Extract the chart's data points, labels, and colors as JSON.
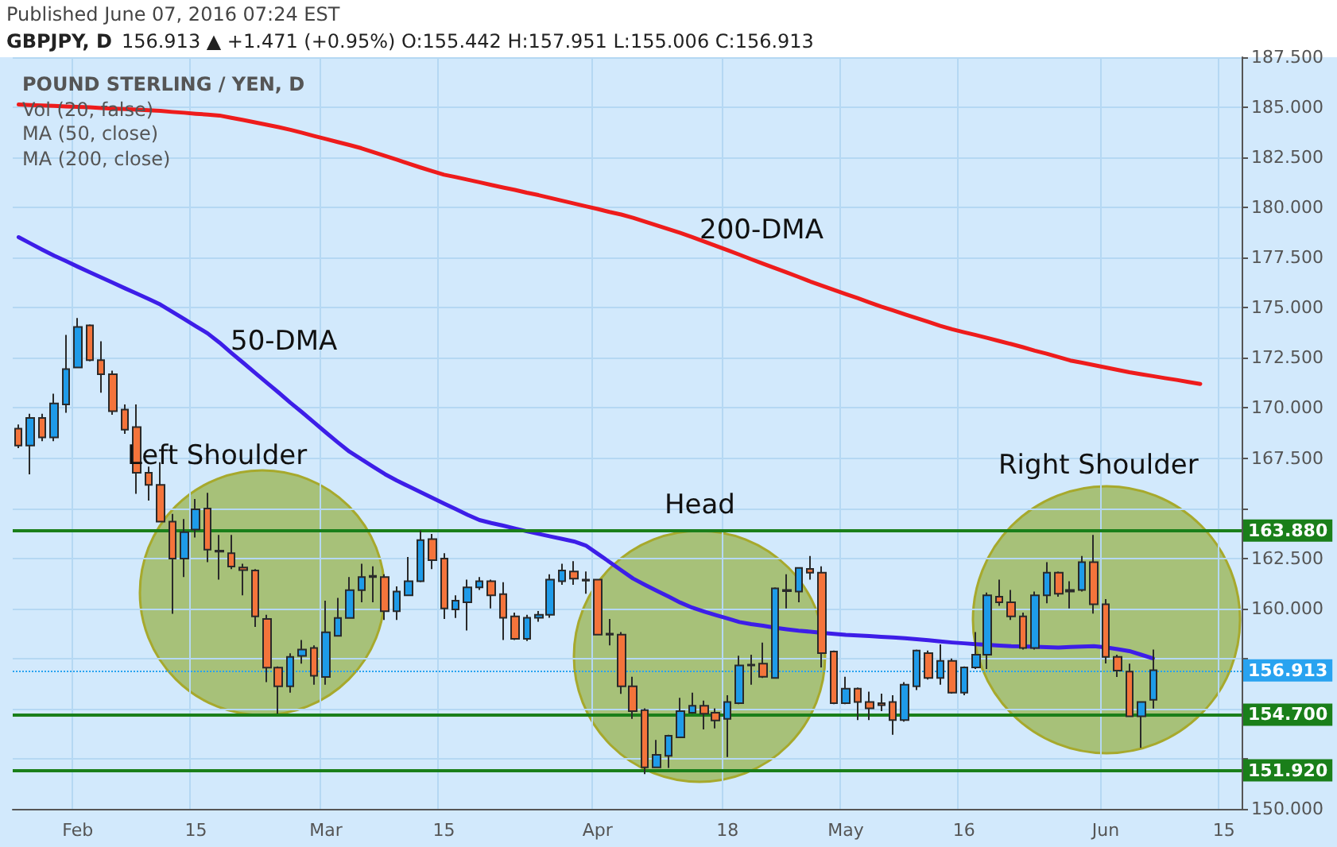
{
  "chart_data": {
    "type": "candlestick",
    "title": "GBPJPY, D",
    "subtitle": "156.913 ▲ +1.471 (+0.95%) O:155.442 H:157.951 L:155.006 C:156.913",
    "annotations": [
      "Published June 07, 2016 07:24 EST",
      "POUND STERLING / YEN, D",
      "Vol (20, false)",
      "MA (50, close)",
      "MA (200, close)",
      "50-DMA",
      "200-DMA",
      "Left Shoulder",
      "Head",
      "Right Shoulder"
    ],
    "categories": [
      null,
      null,
      null,
      null,
      null,
      "Feb",
      null,
      null,
      null,
      null,
      null,
      null,
      null,
      null,
      null,
      "15",
      null,
      null,
      null,
      null,
      null,
      null,
      null,
      null,
      null,
      null,
      "Mar",
      null,
      null,
      null,
      null,
      null,
      null,
      null,
      null,
      null,
      "15",
      null,
      null,
      null,
      null,
      null,
      null,
      null,
      null,
      null,
      null,
      null,
      null,
      "Apr",
      null,
      null,
      null,
      null,
      null,
      null,
      null,
      null,
      null,
      null,
      "18",
      null,
      null,
      null,
      null,
      null,
      null,
      null,
      null,
      null,
      "May",
      null,
      null,
      null,
      null,
      null,
      null,
      null,
      null,
      null,
      "16",
      null,
      null,
      null,
      null,
      null,
      null,
      null,
      null,
      null,
      null,
      null,
      "Jun",
      null,
      null,
      null,
      null,
      null,
      null,
      null,
      null,
      null,
      "15",
      null
    ],
    "ohlc": [
      [
        168.97,
        169.18,
        168.0,
        168.13
      ],
      [
        168.13,
        169.71,
        166.69,
        169.5
      ],
      [
        169.5,
        169.71,
        168.34,
        168.53
      ],
      [
        168.53,
        170.71,
        168.34,
        170.23
      ],
      [
        170.18,
        173.65,
        169.76,
        171.94
      ],
      [
        172.02,
        174.49,
        172.02,
        174.04
      ],
      [
        174.12,
        174.17,
        172.33,
        172.39
      ],
      [
        172.39,
        173.33,
        170.76,
        171.68
      ],
      [
        171.68,
        171.86,
        169.66,
        169.84
      ],
      [
        169.92,
        170.18,
        168.71,
        168.92
      ],
      [
        169.05,
        170.18,
        165.72,
        166.77
      ],
      [
        166.77,
        167.08,
        165.38,
        166.16
      ],
      [
        166.16,
        167.29,
        164.33,
        164.33
      ],
      [
        164.33,
        164.72,
        159.73,
        162.49
      ],
      [
        162.49,
        164.46,
        161.57,
        163.8
      ],
      [
        163.93,
        165.46,
        163.54,
        164.94
      ],
      [
        164.98,
        165.77,
        162.31,
        162.93
      ],
      [
        162.88,
        163.67,
        161.44,
        162.83
      ],
      [
        162.75,
        163.67,
        161.96,
        162.09
      ],
      [
        162.04,
        162.23,
        160.65,
        161.91
      ],
      [
        161.89,
        161.96,
        159.08,
        159.6
      ],
      [
        159.47,
        159.68,
        156.32,
        157.05
      ],
      [
        157.05,
        157.11,
        154.75,
        156.11
      ],
      [
        156.11,
        157.76,
        155.8,
        157.58
      ],
      [
        157.63,
        158.42,
        157.24,
        157.95
      ],
      [
        158.03,
        158.16,
        156.19,
        156.64
      ],
      [
        156.58,
        160.39,
        156.19,
        158.81
      ],
      [
        158.63,
        160.52,
        158.63,
        159.52
      ],
      [
        159.52,
        161.57,
        159.52,
        160.91
      ],
      [
        160.91,
        162.23,
        160.31,
        161.57
      ],
      [
        161.62,
        162.1,
        160.31,
        161.57
      ],
      [
        161.57,
        161.7,
        159.42,
        159.86
      ],
      [
        159.86,
        161.1,
        159.42,
        160.84
      ],
      [
        160.65,
        162.57,
        160.65,
        161.36
      ],
      [
        161.36,
        163.88,
        161.31,
        163.41
      ],
      [
        163.46,
        163.72,
        161.96,
        162.41
      ],
      [
        162.49,
        162.75,
        159.47,
        160.0
      ],
      [
        159.95,
        160.65,
        159.52,
        160.39
      ],
      [
        160.31,
        161.44,
        158.9,
        161.05
      ],
      [
        161.05,
        161.57,
        160.92,
        161.36
      ],
      [
        161.36,
        161.44,
        160.0,
        160.65
      ],
      [
        160.71,
        161.31,
        158.42,
        159.53
      ],
      [
        159.6,
        159.79,
        158.42,
        158.48
      ],
      [
        158.48,
        159.68,
        158.37,
        159.53
      ],
      [
        159.53,
        159.87,
        159.34,
        159.68
      ],
      [
        159.68,
        161.7,
        159.53,
        161.44
      ],
      [
        161.36,
        162.23,
        161.18,
        161.89
      ],
      [
        161.84,
        162.36,
        161.18,
        161.49
      ],
      [
        161.44,
        161.84,
        160.73,
        161.39
      ],
      [
        161.44,
        161.44,
        158.69,
        158.69
      ],
      [
        158.74,
        159.47,
        158.16,
        158.69
      ],
      [
        158.69,
        158.82,
        155.74,
        156.11
      ],
      [
        156.11,
        156.59,
        154.49,
        154.88
      ],
      [
        154.93,
        155.01,
        151.73,
        152.07
      ],
      [
        152.07,
        153.44,
        152.04,
        152.7
      ],
      [
        152.65,
        153.7,
        152.04,
        153.65
      ],
      [
        153.57,
        155.54,
        153.57,
        154.88
      ],
      [
        154.8,
        155.8,
        154.75,
        155.14
      ],
      [
        155.14,
        155.4,
        153.96,
        154.75
      ],
      [
        154.8,
        155.01,
        154.01,
        154.41
      ],
      [
        154.49,
        155.67,
        152.59,
        155.33
      ],
      [
        155.27,
        157.64,
        155.22,
        157.16
      ],
      [
        157.16,
        157.69,
        156.19,
        157.19
      ],
      [
        157.24,
        158.29,
        156.53,
        156.59
      ],
      [
        156.53,
        161.05,
        156.53,
        161.0
      ],
      [
        160.86,
        161.7,
        160.0,
        160.92
      ],
      [
        160.84,
        162.02,
        160.31,
        162.02
      ],
      [
        161.97,
        162.62,
        161.44,
        161.78
      ],
      [
        161.78,
        162.1,
        157.06,
        157.77
      ],
      [
        157.85,
        157.9,
        155.22,
        155.27
      ],
      [
        155.27,
        156.59,
        155.22,
        156.0
      ],
      [
        156.0,
        156.06,
        154.43,
        155.33
      ],
      [
        155.33,
        155.85,
        154.43,
        155.01
      ],
      [
        155.27,
        155.75,
        154.88,
        155.17
      ],
      [
        155.33,
        155.67,
        153.7,
        154.43
      ],
      [
        154.43,
        156.32,
        154.35,
        156.19
      ],
      [
        156.11,
        157.95,
        155.93,
        157.9
      ],
      [
        157.77,
        157.9,
        156.45,
        156.53
      ],
      [
        156.53,
        158.21,
        156.19,
        157.38
      ],
      [
        157.38,
        157.5,
        155.75,
        155.8
      ],
      [
        155.8,
        157.11,
        155.67,
        157.06
      ],
      [
        157.06,
        158.82,
        156.98,
        157.69
      ],
      [
        157.69,
        160.79,
        156.98,
        160.65
      ],
      [
        160.58,
        161.44,
        160.13,
        160.31
      ],
      [
        160.31,
        160.92,
        159.42,
        159.6
      ],
      [
        159.6,
        159.79,
        157.95,
        158.03
      ],
      [
        158.03,
        160.84,
        157.95,
        160.65
      ],
      [
        160.65,
        162.31,
        160.26,
        161.78
      ],
      [
        161.78,
        161.84,
        160.58,
        160.73
      ],
      [
        160.92,
        161.36,
        160.0,
        160.84
      ],
      [
        160.92,
        162.62,
        160.84,
        162.31
      ],
      [
        162.31,
        163.67,
        159.74,
        160.21
      ],
      [
        160.21,
        160.47,
        157.25,
        157.58
      ],
      [
        157.58,
        157.69,
        156.58,
        156.9
      ],
      [
        156.85,
        157.24,
        154.62,
        154.62
      ],
      [
        154.62,
        155.33,
        153.04,
        155.33
      ],
      [
        155.442,
        157.951,
        155.006,
        156.913
      ],
      null,
      null,
      null,
      null,
      null,
      null,
      null
    ],
    "colors": [
      "#f4743b",
      "#1e9be9",
      "#f4743b",
      "#1e9be9",
      "#1e9be9",
      "#1e9be9",
      "#f4743b",
      "#f4743b",
      "#f4743b",
      "#f4743b",
      "#f4743b",
      "#f4743b",
      "#f4743b",
      "#f4743b",
      "#1e9be9",
      "#1e9be9",
      "#f4743b",
      "#f4743b",
      "#f4743b",
      "#f4743b",
      "#f4743b",
      "#f4743b",
      "#f4743b",
      "#1e9be9",
      "#1e9be9",
      "#f4743b",
      "#1e9be9",
      "#1e9be9",
      "#1e9be9",
      "#1e9be9",
      "#f4743b",
      "#f4743b",
      "#1e9be9",
      "#1e9be9",
      "#1e9be9",
      "#f4743b",
      "#f4743b",
      "#1e9be9",
      "#1e9be9",
      "#1e9be9",
      "#f4743b",
      "#f4743b",
      "#f4743b",
      "#1e9be9",
      "#1e9be9",
      "#1e9be9",
      "#1e9be9",
      "#f4743b",
      "#f4743b",
      "#f4743b",
      "#222222",
      "#f4743b",
      "#f4743b",
      "#f4743b",
      "#1e9be9",
      "#1e9be9",
      "#1e9be9",
      "#1e9be9",
      "#f4743b",
      "#f4743b",
      "#1e9be9",
      "#1e9be9",
      "#1e9be9",
      "#f4743b",
      "#1e9be9",
      "#1e9be9",
      "#1e9be9",
      "#f4743b",
      "#f4743b",
      "#f4743b",
      "#1e9be9",
      "#f4743b",
      "#f4743b",
      "#f4743b",
      "#f4743b",
      "#1e9be9",
      "#1e9be9",
      "#f4743b",
      "#1e9be9",
      "#f4743b",
      "#1e9be9",
      "#1e9be9",
      "#1e9be9",
      "#f4743b",
      "#f4743b",
      "#f4743b",
      "#1e9be9",
      "#1e9be9",
      "#f4743b",
      "#222222",
      "#1e9be9",
      "#f4743b",
      "#f4743b",
      "#f4743b",
      "#f4743b",
      "#1e9be9",
      "#1e9be9",
      null,
      null,
      null,
      null,
      null,
      null,
      null
    ],
    "series": [
      {
        "type": "line",
        "color": "#3d1ee8",
        "values": [
          178.52,
          178.21,
          177.9,
          177.6,
          177.33,
          177.05,
          176.78,
          176.51,
          176.24,
          175.97,
          175.71,
          175.44,
          175.16,
          174.8,
          174.44,
          174.08,
          173.72,
          173.26,
          172.75,
          172.26,
          171.76,
          171.26,
          170.77,
          170.26,
          169.78,
          169.28,
          168.78,
          168.29,
          167.82,
          167.45,
          167.07,
          166.7,
          166.38,
          166.09,
          165.81,
          165.52,
          165.23,
          164.95,
          164.67,
          164.41,
          164.26,
          164.13,
          163.99,
          163.85,
          163.72,
          163.59,
          163.47,
          163.34,
          163.14,
          162.73,
          162.32,
          161.9,
          161.49,
          161.18,
          160.88,
          160.59,
          160.29,
          160.04,
          159.85,
          159.67,
          159.5,
          159.32,
          159.22,
          159.14,
          159.04,
          158.96,
          158.89,
          158.84,
          158.78,
          158.73,
          158.68,
          158.65,
          158.62,
          158.58,
          158.55,
          158.51,
          158.46,
          158.41,
          158.35,
          158.3,
          158.26,
          158.22,
          158.19,
          158.15,
          158.12,
          158.11,
          158.09,
          158.07,
          158.05,
          158.08,
          158.1,
          158.12,
          158.06,
          157.97,
          157.87,
          157.69,
          157.51,
          null,
          null,
          null,
          null,
          null,
          null,
          null
        ]
      },
      {
        "type": "line",
        "color": "#ee1c1c",
        "values": [
          185.14,
          185.11,
          185.09,
          185.07,
          185.04,
          185.02,
          185.0,
          184.96,
          184.93,
          184.91,
          184.88,
          184.85,
          184.82,
          184.77,
          184.73,
          184.68,
          184.64,
          184.59,
          184.48,
          184.37,
          184.25,
          184.13,
          184.01,
          183.88,
          183.73,
          183.57,
          183.42,
          183.27,
          183.12,
          182.96,
          182.77,
          182.58,
          182.39,
          182.19,
          182.0,
          181.82,
          181.64,
          181.52,
          181.39,
          181.26,
          181.13,
          181.0,
          180.88,
          180.74,
          180.62,
          180.48,
          180.34,
          180.2,
          180.06,
          179.93,
          179.78,
          179.65,
          179.49,
          179.3,
          179.11,
          178.92,
          178.73,
          178.53,
          178.31,
          178.09,
          177.87,
          177.65,
          177.42,
          177.2,
          176.98,
          176.76,
          176.54,
          176.31,
          176.1,
          175.89,
          175.68,
          175.48,
          175.27,
          175.06,
          174.87,
          174.67,
          174.48,
          174.29,
          174.1,
          173.93,
          173.78,
          173.64,
          173.49,
          173.34,
          173.19,
          173.03,
          172.86,
          172.71,
          172.54,
          172.37,
          172.26,
          172.14,
          172.02,
          171.9,
          171.78,
          171.68,
          171.59,
          171.49,
          171.4,
          171.3,
          171.2,
          null,
          null,
          null
        ]
      }
    ],
    "ylim": [
      150,
      187.5
    ],
    "yticks": [
      {
        "value": 150,
        "label": "150.000"
      },
      {
        "value": 152.5,
        "label": null
      },
      {
        "value": 155,
        "label": null
      },
      {
        "value": 157.5,
        "label": null
      },
      {
        "value": 160,
        "label": "160.000"
      },
      {
        "value": 162.5,
        "label": "162.500"
      },
      {
        "value": 165,
        "label": null
      },
      {
        "value": 167.5,
        "label": "167.500"
      },
      {
        "value": 170,
        "label": "170.000"
      },
      {
        "value": 172.5,
        "label": "172.500"
      },
      {
        "value": 175,
        "label": "175.000"
      },
      {
        "value": 177.5,
        "label": "177.500"
      },
      {
        "value": 180,
        "label": "180.000"
      },
      {
        "value": 182.5,
        "label": "182.500"
      },
      {
        "value": 185,
        "label": "185.000"
      },
      {
        "value": 187.5,
        "label": "187.500"
      }
    ],
    "ref_lines": [
      {
        "axis": "y",
        "value": 163.88,
        "label": "163.880",
        "color": "#1a7f1a",
        "line_style": "solid"
      },
      {
        "axis": "y",
        "value": 154.7,
        "label": "154.700",
        "color": "#1a7f1a",
        "line_style": "solid"
      },
      {
        "axis": "y",
        "value": 151.92,
        "label": "151.920",
        "color": "#1a7f1a",
        "line_style": "solid"
      },
      {
        "axis": "y",
        "value": 156.913,
        "label": "156.913",
        "color": "#29a3f0",
        "line_style": "dotted"
      }
    ],
    "grid": true,
    "marker": "none"
  }
}
